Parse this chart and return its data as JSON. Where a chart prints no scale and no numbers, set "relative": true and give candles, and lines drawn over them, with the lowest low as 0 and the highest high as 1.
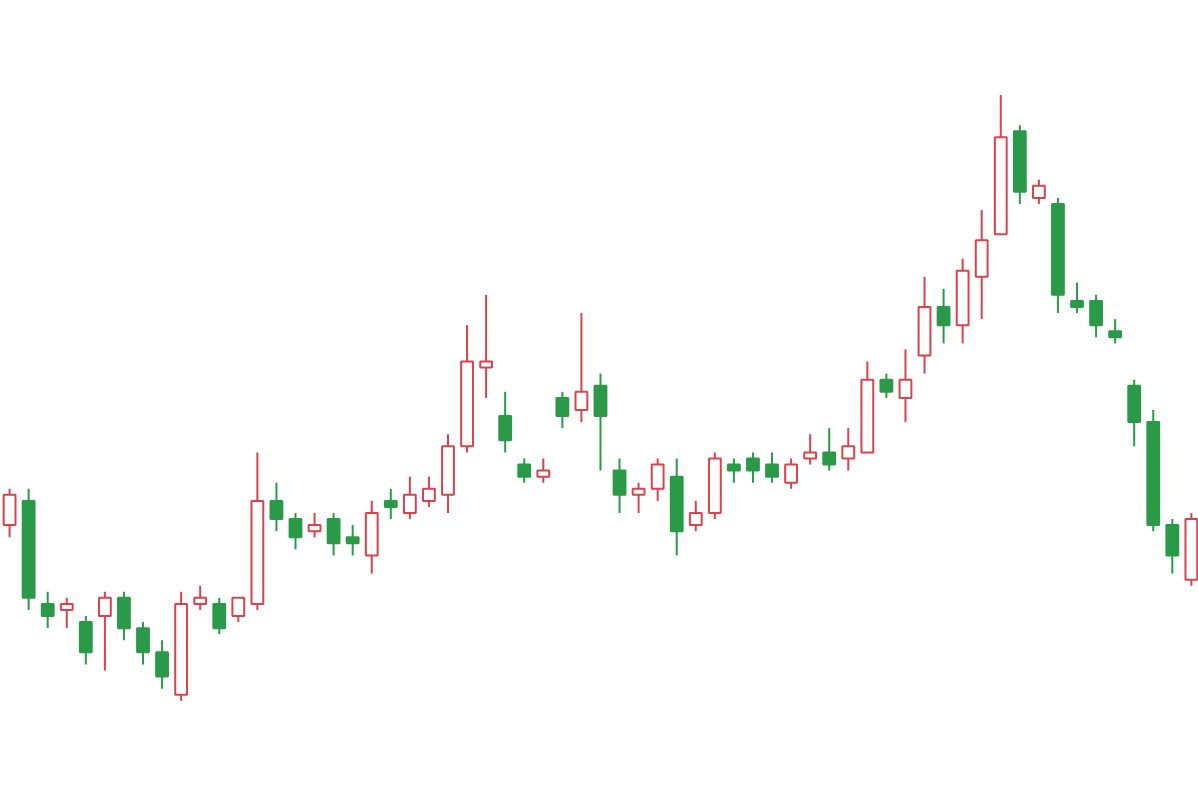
{
  "chart_data": {
    "type": "candlestick",
    "relative": true,
    "categories": [
      null,
      null,
      null,
      null,
      null,
      null,
      null,
      null,
      null,
      null,
      null,
      null,
      null,
      null,
      null,
      null,
      null,
      null,
      null,
      null,
      null,
      null,
      null,
      null,
      null,
      null,
      null,
      null,
      null,
      null,
      null,
      null,
      null,
      null,
      null,
      null,
      null,
      null,
      null,
      null,
      null,
      null,
      null,
      null,
      null,
      null,
      null,
      null,
      null,
      null,
      null,
      null,
      null,
      null,
      null,
      null,
      null,
      null,
      null,
      null,
      null,
      null,
      null
    ],
    "ohlc": [
      [
        0.29,
        0.35,
        0.27,
        0.34
      ],
      [
        0.33,
        0.35,
        0.15,
        0.17
      ],
      [
        0.16,
        0.18,
        0.12,
        0.14
      ],
      [
        0.15,
        0.17,
        0.12,
        0.16
      ],
      [
        0.13,
        0.14,
        0.06,
        0.08
      ],
      [
        0.14,
        0.18,
        0.05,
        0.17
      ],
      [
        0.17,
        0.18,
        0.1,
        0.12
      ],
      [
        0.12,
        0.13,
        0.06,
        0.08
      ],
      [
        0.08,
        0.1,
        0.02,
        0.04
      ],
      [
        0.01,
        0.18,
        0.0,
        0.16
      ],
      [
        0.16,
        0.19,
        0.15,
        0.17
      ],
      [
        0.16,
        0.17,
        0.11,
        0.12
      ],
      [
        0.14,
        0.17,
        0.13,
        0.17
      ],
      [
        0.16,
        0.41,
        0.15,
        0.33
      ],
      [
        0.33,
        0.36,
        0.28,
        0.3
      ],
      [
        0.3,
        0.31,
        0.25,
        0.27
      ],
      [
        0.28,
        0.31,
        0.27,
        0.29
      ],
      [
        0.3,
        0.31,
        0.24,
        0.26
      ],
      [
        0.27,
        0.29,
        0.24,
        0.26
      ],
      [
        0.24,
        0.33,
        0.21,
        0.31
      ],
      [
        0.33,
        0.35,
        0.3,
        0.32
      ],
      [
        0.31,
        0.37,
        0.3,
        0.34
      ],
      [
        0.33,
        0.37,
        0.32,
        0.35
      ],
      [
        0.34,
        0.44,
        0.31,
        0.42
      ],
      [
        0.42,
        0.62,
        0.41,
        0.56
      ],
      [
        0.55,
        0.67,
        0.5,
        0.56
      ],
      [
        0.47,
        0.51,
        0.41,
        0.43
      ],
      [
        0.39,
        0.4,
        0.36,
        0.37
      ],
      [
        0.37,
        0.4,
        0.36,
        0.38
      ],
      [
        0.5,
        0.51,
        0.45,
        0.47
      ],
      [
        0.48,
        0.64,
        0.46,
        0.51
      ],
      [
        0.52,
        0.54,
        0.38,
        0.47
      ],
      [
        0.38,
        0.4,
        0.31,
        0.34
      ],
      [
        0.34,
        0.36,
        0.31,
        0.35
      ],
      [
        0.35,
        0.4,
        0.33,
        0.39
      ],
      [
        0.37,
        0.4,
        0.24,
        0.28
      ],
      [
        0.29,
        0.33,
        0.28,
        0.31
      ],
      [
        0.31,
        0.41,
        0.3,
        0.4
      ],
      [
        0.39,
        0.4,
        0.36,
        0.38
      ],
      [
        0.4,
        0.41,
        0.36,
        0.38
      ],
      [
        0.39,
        0.41,
        0.36,
        0.37
      ],
      [
        0.36,
        0.4,
        0.35,
        0.39
      ],
      [
        0.4,
        0.44,
        0.39,
        0.41
      ],
      [
        0.41,
        0.45,
        0.38,
        0.39
      ],
      [
        0.4,
        0.45,
        0.38,
        0.42
      ],
      [
        0.41,
        0.56,
        0.41,
        0.53
      ],
      [
        0.53,
        0.54,
        0.5,
        0.51
      ],
      [
        0.5,
        0.58,
        0.46,
        0.53
      ],
      [
        0.57,
        0.7,
        0.54,
        0.65
      ],
      [
        0.65,
        0.68,
        0.59,
        0.62
      ],
      [
        0.62,
        0.73,
        0.59,
        0.71
      ],
      [
        0.7,
        0.81,
        0.63,
        0.76
      ],
      [
        0.77,
        1.0,
        0.77,
        0.93
      ],
      [
        0.94,
        0.95,
        0.82,
        0.84
      ],
      [
        0.83,
        0.86,
        0.82,
        0.85
      ],
      [
        0.82,
        0.83,
        0.64,
        0.67
      ],
      [
        0.66,
        0.69,
        0.64,
        0.65
      ],
      [
        0.66,
        0.67,
        0.6,
        0.62
      ],
      [
        0.61,
        0.63,
        0.59,
        0.6
      ],
      [
        0.52,
        0.53,
        0.42,
        0.46
      ],
      [
        0.46,
        0.48,
        0.28,
        0.29
      ],
      [
        0.29,
        0.3,
        0.21,
        0.24
      ],
      [
        0.2,
        0.31,
        0.19,
        0.3
      ]
    ],
    "colors": [
      "#d9434b",
      "#2a9a48",
      "#2a9a48",
      "#d9434b",
      "#2a9a48",
      "#d9434b",
      "#2a9a48",
      "#2a9a48",
      "#2a9a48",
      "#d9434b",
      "#d9434b",
      "#2a9a48",
      "#d9434b",
      "#d9434b",
      "#2a9a48",
      "#2a9a48",
      "#d9434b",
      "#2a9a48",
      "#2a9a48",
      "#d9434b",
      "#2a9a48",
      "#d9434b",
      "#d9434b",
      "#d9434b",
      "#d9434b",
      "#d9434b",
      "#2a9a48",
      "#2a9a48",
      "#d9434b",
      "#2a9a48",
      "#d9434b",
      "#2a9a48",
      "#2a9a48",
      "#d9434b",
      "#d9434b",
      "#2a9a48",
      "#d9434b",
      "#d9434b",
      "#2a9a48",
      "#2a9a48",
      "#2a9a48",
      "#d9434b",
      "#d9434b",
      "#2a9a48",
      "#d9434b",
      "#d9434b",
      "#2a9a48",
      "#d9434b",
      "#d9434b",
      "#2a9a48",
      "#d9434b",
      "#d9434b",
      "#d9434b",
      "#2a9a48",
      "#d9434b",
      "#2a9a48",
      "#2a9a48",
      "#2a9a48",
      "#2a9a48",
      "#2a9a48",
      "#2a9a48",
      "#2a9a48",
      "#d9434b"
    ]
  }
}
